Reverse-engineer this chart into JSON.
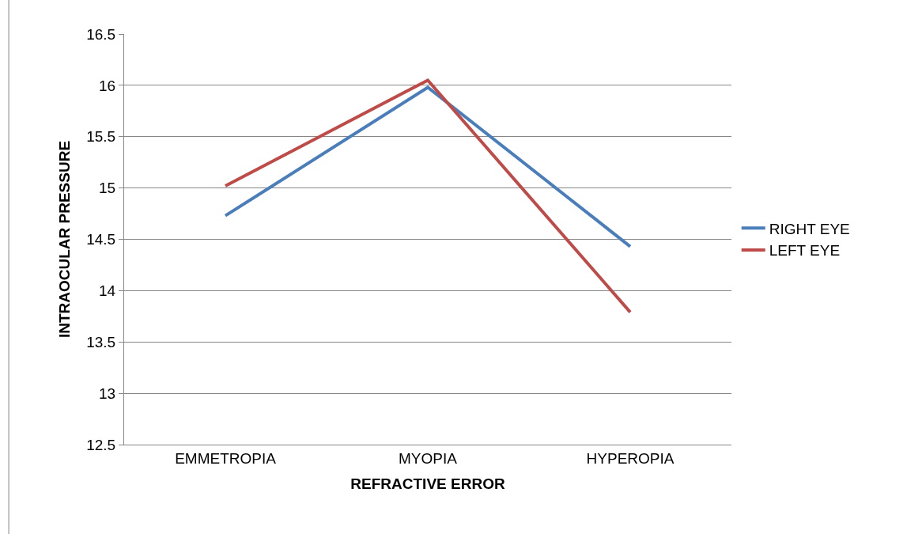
{
  "chart_data": {
    "type": "line",
    "xlabel": "REFRACTIVE ERROR",
    "ylabel": "INTRAOCULAR PRESSURE",
    "categories": [
      "EMMETROPIA",
      "MYOPIA",
      "HYPEROPIA"
    ],
    "series": [
      {
        "name": "RIGHT EYE",
        "color": "#4a7ebb",
        "values": [
          14.73,
          15.98,
          14.43
        ]
      },
      {
        "name": "LEFT EYE",
        "color": "#be4b48",
        "values": [
          15.02,
          16.05,
          13.79
        ]
      }
    ],
    "ylim": [
      12.5,
      16.5
    ],
    "yticks": [
      12.5,
      13,
      13.5,
      14,
      14.5,
      15,
      15.5,
      16,
      16.5
    ],
    "grid": "y",
    "legend": "right",
    "marker": "none",
    "line_style": "solid"
  }
}
